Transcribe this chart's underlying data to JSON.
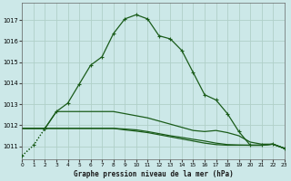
{
  "title": "Graphe pression niveau de la mer (hPa)",
  "bg_color": "#cce8e8",
  "grid_color": "#b0d0c8",
  "line_color": "#1a5c1a",
  "x_min": 0,
  "x_max": 23,
  "y_min": 1010.4,
  "y_max": 1017.8,
  "yticks": [
    1011,
    1012,
    1013,
    1014,
    1015,
    1016,
    1017
  ],
  "xticks": [
    0,
    1,
    2,
    3,
    4,
    5,
    6,
    7,
    8,
    9,
    10,
    11,
    12,
    13,
    14,
    15,
    16,
    17,
    18,
    19,
    20,
    21,
    22,
    23
  ],
  "series_main": [
    1010.55,
    1011.05,
    1011.85,
    1012.65,
    1013.05,
    1013.95,
    1014.85,
    1015.25,
    1016.35,
    1017.05,
    1017.25,
    1017.05,
    1016.25,
    1016.1,
    1015.55,
    1014.5,
    1013.45,
    1013.2,
    1012.55,
    1011.7,
    1011.05,
    1011.05,
    1011.1,
    1010.9
  ],
  "series_upper_flat": [
    1011.85,
    1011.85,
    1011.85,
    1012.65,
    1012.65,
    1012.65,
    1012.65,
    1012.65,
    1012.65,
    1012.55,
    1012.45,
    1012.35,
    1012.2,
    1012.05,
    1011.9,
    1011.75,
    1011.7,
    1011.75,
    1011.65,
    1011.5,
    1011.2,
    1011.1,
    1011.1,
    1010.9
  ],
  "series_lower_flat": [
    1011.85,
    1011.85,
    1011.85,
    1011.85,
    1011.85,
    1011.85,
    1011.85,
    1011.85,
    1011.85,
    1011.78,
    1011.72,
    1011.65,
    1011.55,
    1011.45,
    1011.35,
    1011.25,
    1011.15,
    1011.08,
    1011.05,
    1011.05,
    1011.05,
    1011.05,
    1011.1,
    1010.9
  ],
  "series_mid_flat": [
    1011.85,
    1011.85,
    1011.85,
    1011.85,
    1011.85,
    1011.85,
    1011.85,
    1011.85,
    1011.85,
    1011.82,
    1011.78,
    1011.7,
    1011.6,
    1011.5,
    1011.42,
    1011.33,
    1011.25,
    1011.15,
    1011.08,
    1011.06,
    1011.05,
    1011.05,
    1011.1,
    1010.9
  ]
}
